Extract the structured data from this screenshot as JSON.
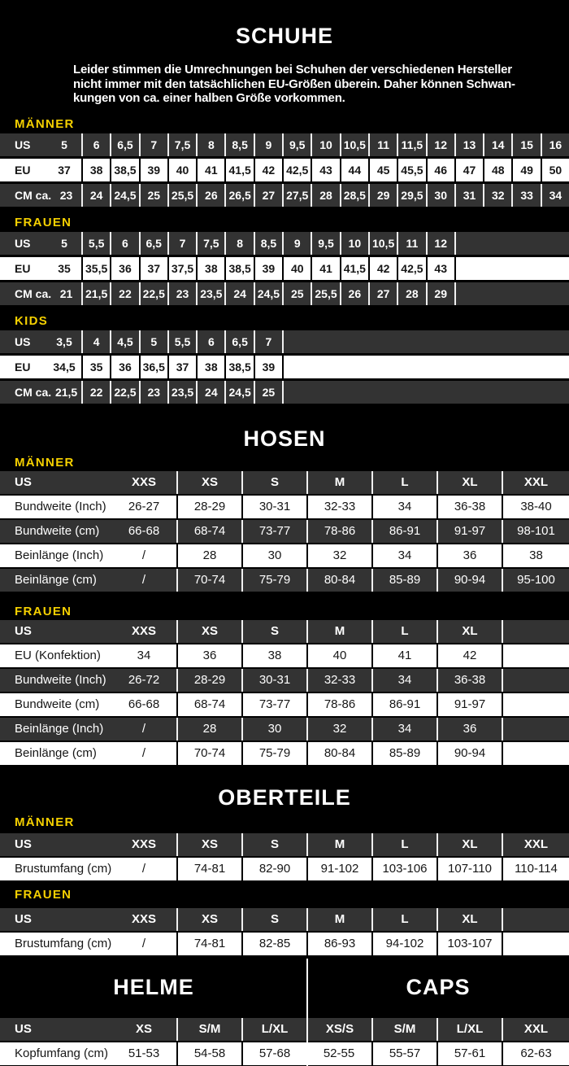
{
  "colors": {
    "page_bg": "#000000",
    "accent_yellow": "#f6d100",
    "row_dark": "#333333",
    "row_light": "#ffffff",
    "divider_on_dark": "#f0f0f0",
    "divider_on_light": "#000000"
  },
  "schuhe": {
    "title": "SCHUHE",
    "intro_lines": [
      "Leider stimmen die Umrechnungen bei Schuhen der verschiedenen Hersteller",
      "nicht immer mit den tatsächlichen EU-Größen überein. Daher können Schwan-",
      "kungen von ca. einer halben Größe vorkommen."
    ],
    "groups": [
      {
        "label": "MÄNNER",
        "rows": [
          {
            "label": "US",
            "values": [
              "5",
              "6",
              "6,5",
              "7",
              "7,5",
              "8",
              "8,5",
              "9",
              "9,5",
              "10",
              "10,5",
              "11",
              "11,5",
              "12",
              "13",
              "14",
              "15",
              "16"
            ]
          },
          {
            "label": "EU",
            "values": [
              "37",
              "38",
              "38,5",
              "39",
              "40",
              "41",
              "41,5",
              "42",
              "42,5",
              "43",
              "44",
              "45",
              "45,5",
              "46",
              "47",
              "48",
              "49",
              "50"
            ]
          },
          {
            "label": "CM ca.",
            "values": [
              "23",
              "24",
              "24,5",
              "25",
              "25,5",
              "26",
              "26,5",
              "27",
              "27,5",
              "28",
              "28,5",
              "29",
              "29,5",
              "30",
              "31",
              "32",
              "33",
              "34"
            ]
          }
        ]
      },
      {
        "label": "FRAUEN",
        "rows": [
          {
            "label": "US",
            "values": [
              "5",
              "5,5",
              "6",
              "6,5",
              "7",
              "7,5",
              "8",
              "8,5",
              "9",
              "9,5",
              "10",
              "10,5",
              "11",
              "12"
            ]
          },
          {
            "label": "EU",
            "values": [
              "35",
              "35,5",
              "36",
              "37",
              "37,5",
              "38",
              "38,5",
              "39",
              "40",
              "41",
              "41,5",
              "42",
              "42,5",
              "43"
            ]
          },
          {
            "label": "CM ca.",
            "values": [
              "21",
              "21,5",
              "22",
              "22,5",
              "23",
              "23,5",
              "24",
              "24,5",
              "25",
              "25,5",
              "26",
              "27",
              "28",
              "29"
            ]
          }
        ]
      },
      {
        "label": "KIDS",
        "rows": [
          {
            "label": "US",
            "values": [
              "3,5",
              "4",
              "4,5",
              "5",
              "5,5",
              "6",
              "6,5",
              "7"
            ]
          },
          {
            "label": "EU",
            "values": [
              "34,5",
              "35",
              "36",
              "36,5",
              "37",
              "38",
              "38,5",
              "39"
            ]
          },
          {
            "label": "CM ca.",
            "values": [
              "21,5",
              "22",
              "22,5",
              "23",
              "23,5",
              "24",
              "24,5",
              "25"
            ]
          }
        ]
      }
    ]
  },
  "hosen": {
    "title": "HOSEN",
    "groups": [
      {
        "label": "MÄNNER",
        "header": {
          "label": "US",
          "values": [
            "XXS",
            "XS",
            "S",
            "M",
            "L",
            "XL",
            "XXL"
          ]
        },
        "rows": [
          {
            "label": "Bundweite (Inch)",
            "values": [
              "26-27",
              "28-29",
              "30-31",
              "32-33",
              "34",
              "36-38",
              "38-40"
            ]
          },
          {
            "label": "Bundweite (cm)",
            "values": [
              "66-68",
              "68-74",
              "73-77",
              "78-86",
              "86-91",
              "91-97",
              "98-101"
            ]
          },
          {
            "label": "Beinlänge (Inch)",
            "values": [
              "/",
              "28",
              "30",
              "32",
              "34",
              "36",
              "38"
            ]
          },
          {
            "label": "Beinlänge (cm)",
            "values": [
              "/",
              "70-74",
              "75-79",
              "80-84",
              "85-89",
              "90-94",
              "95-100"
            ]
          }
        ]
      },
      {
        "label": "FRAUEN",
        "header": {
          "label": "US",
          "values": [
            "XXS",
            "XS",
            "S",
            "M",
            "L",
            "XL",
            ""
          ]
        },
        "rows": [
          {
            "label": "EU (Konfektion)",
            "values": [
              "34",
              "36",
              "38",
              "40",
              "41",
              "42",
              ""
            ]
          },
          {
            "label": "Bundweite (Inch)",
            "values": [
              "26-72",
              "28-29",
              "30-31",
              "32-33",
              "34",
              "36-38",
              ""
            ]
          },
          {
            "label": "Bundweite (cm)",
            "values": [
              "66-68",
              "68-74",
              "73-77",
              "78-86",
              "86-91",
              "91-97",
              ""
            ]
          },
          {
            "label": "Beinlänge (Inch)",
            "values": [
              "/",
              "28",
              "30",
              "32",
              "34",
              "36",
              ""
            ]
          },
          {
            "label": "Beinlänge (cm)",
            "values": [
              "/",
              "70-74",
              "75-79",
              "80-84",
              "85-89",
              "90-94",
              ""
            ]
          }
        ]
      }
    ]
  },
  "oberteile": {
    "title": "OBERTEILE",
    "groups": [
      {
        "label": "MÄNNER",
        "header": {
          "label": "US",
          "values": [
            "XXS",
            "XS",
            "S",
            "M",
            "L",
            "XL",
            "XXL"
          ]
        },
        "rows": [
          {
            "label": "Brustumfang (cm)",
            "values": [
              "/",
              "74-81",
              "82-90",
              "91-102",
              "103-106",
              "107-110",
              "110-114"
            ]
          }
        ]
      },
      {
        "label": "FRAUEN",
        "header": {
          "label": "US",
          "values": [
            "XXS",
            "XS",
            "S",
            "M",
            "L",
            "XL",
            ""
          ]
        },
        "rows": [
          {
            "label": "Brustumfang (cm)",
            "values": [
              "/",
              "74-81",
              "82-85",
              "86-93",
              "94-102",
              "103-107",
              ""
            ]
          }
        ]
      }
    ]
  },
  "helme_caps": {
    "title_left": "HELME",
    "title_right": "CAPS",
    "header": {
      "label": "US",
      "values": [
        "XS",
        "S/M",
        "L/XL",
        "XS/S",
        "S/M",
        "L/XL",
        "XXL"
      ]
    },
    "rows": [
      {
        "label": "Kopfumfang (cm)",
        "values": [
          "51-53",
          "54-58",
          "57-68",
          "52-55",
          "55-57",
          "57-61",
          "62-63"
        ]
      }
    ]
  }
}
